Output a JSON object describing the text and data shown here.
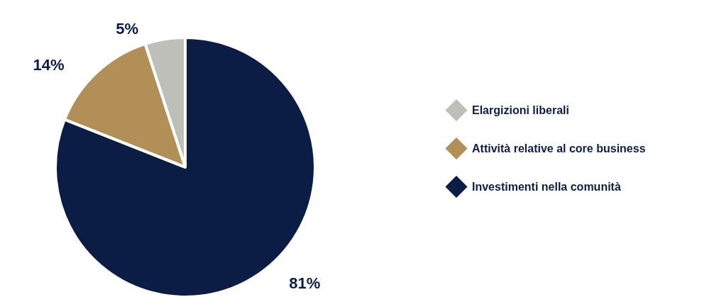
{
  "chart_data": {
    "type": "pie",
    "categories": [
      "Elargizioni liberali",
      "Attività relative al core business",
      "Investimenti nella comunità"
    ],
    "values": [
      5,
      14,
      81
    ],
    "value_labels": [
      "5%",
      "14%",
      "81%"
    ],
    "colors": [
      "#bfbfba",
      "#b38f58",
      "#0b1c45"
    ],
    "legend": "right"
  }
}
